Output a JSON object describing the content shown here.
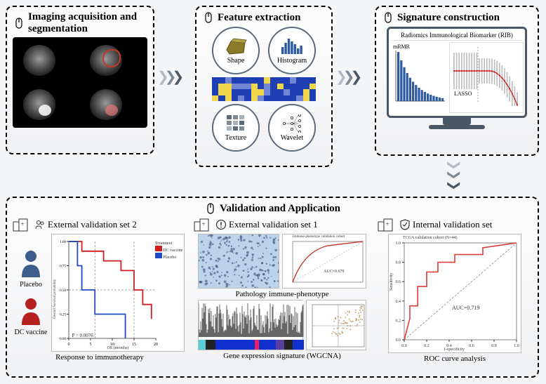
{
  "panel1": {
    "title": "Imaging acquisition and segmentation",
    "overlays": [
      {
        "show": false
      },
      {
        "show": true,
        "type": "ring",
        "color": "#c0392b"
      },
      {
        "show": true,
        "type": "blob",
        "color": "rgba(255,255,255,0.85)"
      },
      {
        "show": true,
        "type": "blob",
        "color": "rgba(231,120,120,0.7)"
      }
    ]
  },
  "panel2": {
    "title": "Feature extraction",
    "features": {
      "shape": "Shape",
      "histogram": "Histogram",
      "texture": "Texture",
      "wavelet": "Wavelet"
    },
    "heatmap_colors": [
      "#1e3fb3",
      "#f2d64b",
      "#1e3fb3",
      "#f2d64b",
      "#6f86d4",
      "#1e3fb3"
    ]
  },
  "panel3": {
    "title": "Signature construction",
    "screen_caption": "Radiomics Immunological Biomarker (RIB)",
    "mrmr_label": "mRMR",
    "lasso_label": "LASSO",
    "bar_color": "#2c5aa0",
    "line_color": "#d01c1c"
  },
  "panel4": {
    "title": "Validation and Application",
    "internal": {
      "title": "Internal validation set",
      "auc": "AUC=0.719",
      "ptitle": "TCGA validation cohort (N=44)",
      "caption": "ROC curve analysis",
      "xlabel": "1-specificity",
      "ylabel": "Sensitivity",
      "roc_color": "#e03a3a",
      "diag_color": "#888"
    },
    "ext1": {
      "title": "External validation set 1",
      "auc": "AUC=0.679",
      "ptitle": "Immune-phenotype validation cohort",
      "caption": "Pathology immune-phenotype",
      "caption2": "Gene expression signature (WGCNA)",
      "roc_color": "#c0392b"
    },
    "ext2": {
      "title": "External validation set 2",
      "groups": {
        "placebo": "Placebo",
        "dc": "DC vaccine"
      },
      "legend_title": "Treatment",
      "pval": "P = 0.0076",
      "xlabel": "OS (months)",
      "ylabel": "Overall Survival probability",
      "xticks": [
        "0",
        "5",
        "10",
        "15",
        "20"
      ],
      "yticks": [
        "0.00",
        "0.25",
        "0.50",
        "0.75",
        "1.00"
      ],
      "caption": "Response to immunotherapy",
      "dc_color": "#d01c1c",
      "pl_color": "#1e49c9"
    }
  },
  "arrow_colors": [
    "#b3bcc5",
    "#7e8a96",
    "#4a5866"
  ]
}
